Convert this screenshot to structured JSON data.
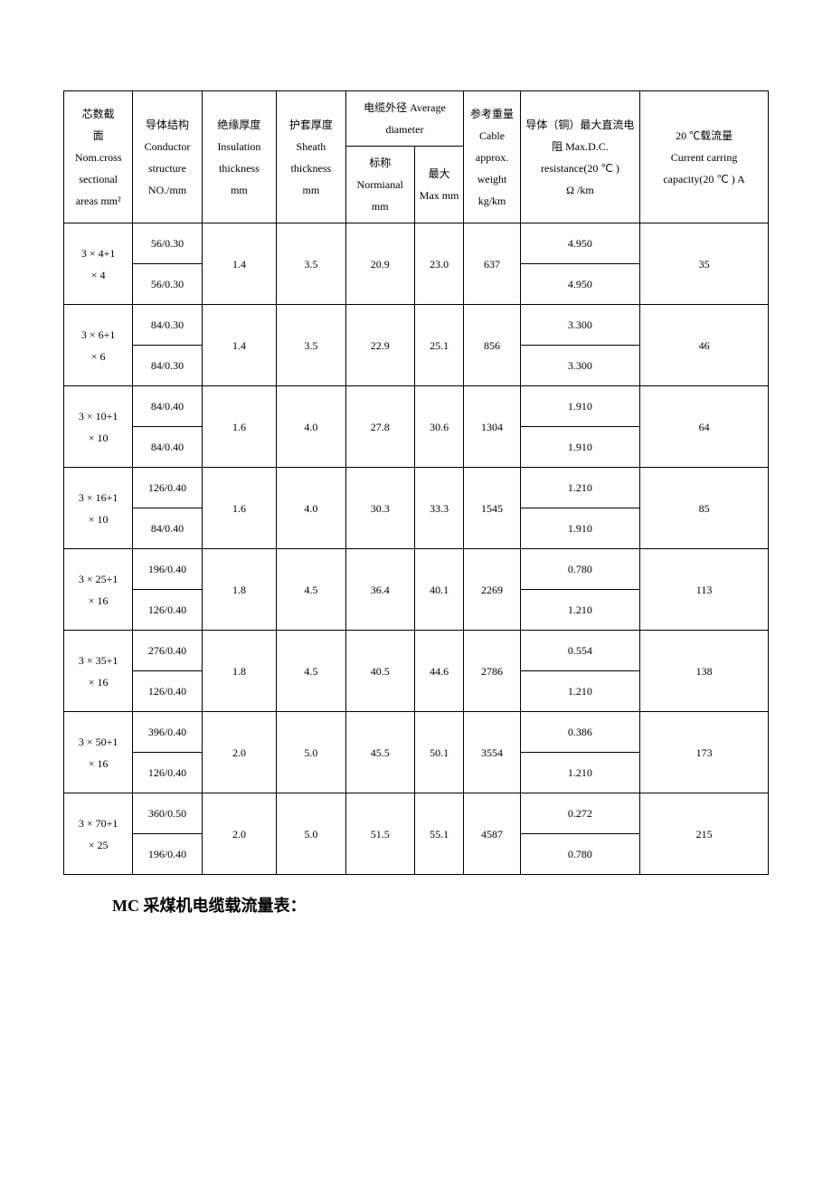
{
  "headers": {
    "col1": {
      "l1": "芯数截",
      "l2": "面",
      "l3": "Nom.cross",
      "l4": "sectional",
      "l5": "areas mm²"
    },
    "col2": {
      "l1": "导体结构",
      "l2": "Conductor",
      "l3": "structure",
      "l4": "NO./mm"
    },
    "col3": {
      "l1": "绝缘厚度",
      "l2": "Insulation",
      "l3": "thickness",
      "l4": "mm"
    },
    "col4": {
      "l1": "护套厚度",
      "l2": "Sheath",
      "l3": "thickness",
      "l4": "mm"
    },
    "diamGroup": {
      "l1": "电缆外径 Average",
      "l2": "diameter"
    },
    "col5": {
      "l1": "标称",
      "l2": "Normianal",
      "l3": "mm"
    },
    "col6": {
      "l1": "最大",
      "l2": "Max mm"
    },
    "col7": {
      "l1": "参考重量",
      "l2": "Cable",
      "l3": "approx.",
      "l4": "weight",
      "l5": "kg/km"
    },
    "col8": {
      "l1": "导体（铜）最大直流电",
      "l2": "阻 Max.D.C.",
      "l3": "resistance(20 ℃ )",
      "l4": "Ω /km"
    },
    "col9": {
      "l1": "20 ℃载流量",
      "l2": "Current carring",
      "l3": "capacity(20 ℃ ) A"
    }
  },
  "rows": [
    {
      "area": {
        "l1": "3 × 4+1",
        "l2": "× 4"
      },
      "cond1": "56/0.30",
      "cond2": "56/0.30",
      "ins": "1.4",
      "sheath": "3.5",
      "nom": "20.9",
      "max": "23.0",
      "wt": "637",
      "res1": "4.950",
      "res2": "4.950",
      "amp": "35"
    },
    {
      "area": {
        "l1": "3 × 6+1",
        "l2": "× 6"
      },
      "cond1": "84/0.30",
      "cond2": "84/0.30",
      "ins": "1.4",
      "sheath": "3.5",
      "nom": "22.9",
      "max": "25.1",
      "wt": "856",
      "res1": "3.300",
      "res2": "3.300",
      "amp": "46"
    },
    {
      "area": {
        "l1": "3 × 10+1",
        "l2": "× 10"
      },
      "cond1": "84/0.40",
      "cond2": "84/0.40",
      "ins": "1.6",
      "sheath": "4.0",
      "nom": "27.8",
      "max": "30.6",
      "wt": "1304",
      "res1": "1.910",
      "res2": "1.910",
      "amp": "64"
    },
    {
      "area": {
        "l1": "3 × 16+1",
        "l2": "× 10"
      },
      "cond1": "126/0.40",
      "cond2": "84/0.40",
      "ins": "1.6",
      "sheath": "4.0",
      "nom": "30.3",
      "max": "33.3",
      "wt": "1545",
      "res1": "1.210",
      "res2": "1.910",
      "amp": "85"
    },
    {
      "area": {
        "l1": "3 × 25+1",
        "l2": "× 16"
      },
      "cond1": "196/0.40",
      "cond2": "126/0.40",
      "ins": "1.8",
      "sheath": "4.5",
      "nom": "36.4",
      "max": "40.1",
      "wt": "2269",
      "res1": "0.780",
      "res2": "1.210",
      "amp": "113"
    },
    {
      "area": {
        "l1": "3 × 35+1",
        "l2": "× 16"
      },
      "cond1": "276/0.40",
      "cond2": "126/0.40",
      "ins": "1.8",
      "sheath": "4.5",
      "nom": "40.5",
      "max": "44.6",
      "wt": "2786",
      "res1": "0.554",
      "res2": "1.210",
      "amp": "138"
    },
    {
      "area": {
        "l1": "3 × 50+1",
        "l2": "× 16"
      },
      "cond1": "396/0.40",
      "cond2": "126/0.40",
      "ins": "2.0",
      "sheath": "5.0",
      "nom": "45.5",
      "max": "50.1",
      "wt": "3554",
      "res1": "0.386",
      "res2": "1.210",
      "amp": "173"
    },
    {
      "area": {
        "l1": "3 × 70+1",
        "l2": "× 25"
      },
      "cond1": "360/0.50",
      "cond2": "196/0.40",
      "ins": "2.0",
      "sheath": "5.0",
      "nom": "51.5",
      "max": "55.1",
      "wt": "4587",
      "res1": "0.272",
      "res2": "0.780",
      "amp": "215"
    }
  ],
  "caption": "MC 采煤机电缆载流量表："
}
